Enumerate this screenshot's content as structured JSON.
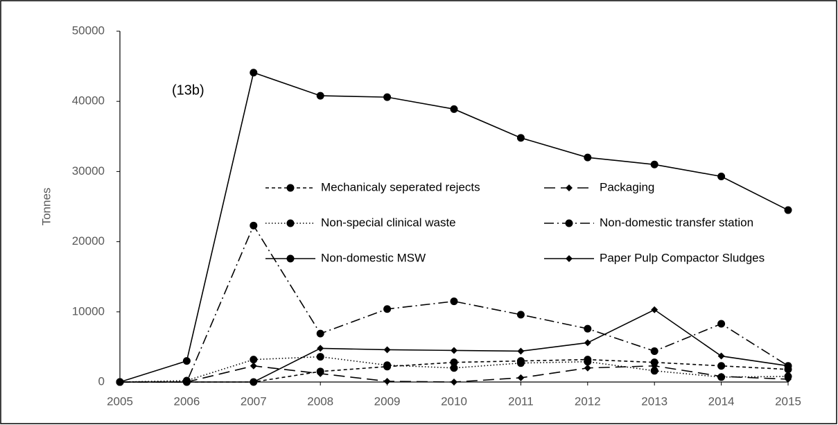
{
  "chart_data": {
    "type": "line",
    "annotation": "(13b)",
    "y_label": "Tonnes",
    "x": [
      2005,
      2006,
      2007,
      2008,
      2009,
      2010,
      2011,
      2012,
      2013,
      2014,
      2015
    ],
    "xlim": [
      2005,
      2015
    ],
    "xticks": [
      2005,
      2006,
      2007,
      2008,
      2009,
      2010,
      2011,
      2012,
      2013,
      2014,
      2015
    ],
    "ylim": [
      0,
      50000
    ],
    "yticks": [
      0,
      10000,
      20000,
      30000,
      40000,
      50000
    ],
    "series": [
      {
        "name": "Mechanicaly seperated rejects",
        "color": "#000000",
        "dash": "5,4",
        "marker": "circle",
        "values": [
          0,
          0,
          0,
          1500,
          2200,
          2800,
          3000,
          3200,
          2800,
          2300,
          1800
        ]
      },
      {
        "name": "Packaging",
        "color": "#000000",
        "dash": "16,8",
        "marker": "diamond",
        "values": [
          0,
          0,
          2300,
          1200,
          100,
          0,
          600,
          2000,
          2300,
          800,
          400
        ]
      },
      {
        "name": "Non-special clinical waste",
        "color": "#000000",
        "dash": "1.5,3",
        "marker": "circle",
        "values": [
          0,
          200,
          3200,
          3600,
          2400,
          2000,
          2700,
          2900,
          1600,
          700,
          800
        ]
      },
      {
        "name": "Non-domestic transfer station",
        "color": "#000000",
        "dash": "14,5,2,5",
        "marker": "circle",
        "values": [
          0,
          0,
          22300,
          6900,
          10400,
          11500,
          9600,
          7600,
          4400,
          8300,
          2300
        ]
      },
      {
        "name": "Non-domestic MSW",
        "color": "#000000",
        "dash": "none",
        "marker": "circle",
        "values": [
          0,
          3000,
          44100,
          40800,
          40600,
          38900,
          34800,
          32000,
          31000,
          29300,
          24500
        ]
      },
      {
        "name": "Paper Pulp Compactor Sludges",
        "color": "#000000",
        "dash": "none",
        "marker": "diamond",
        "values": [
          0,
          0,
          0,
          4800,
          4600,
          4500,
          4400,
          5600,
          10300,
          3700,
          2300
        ]
      }
    ]
  }
}
